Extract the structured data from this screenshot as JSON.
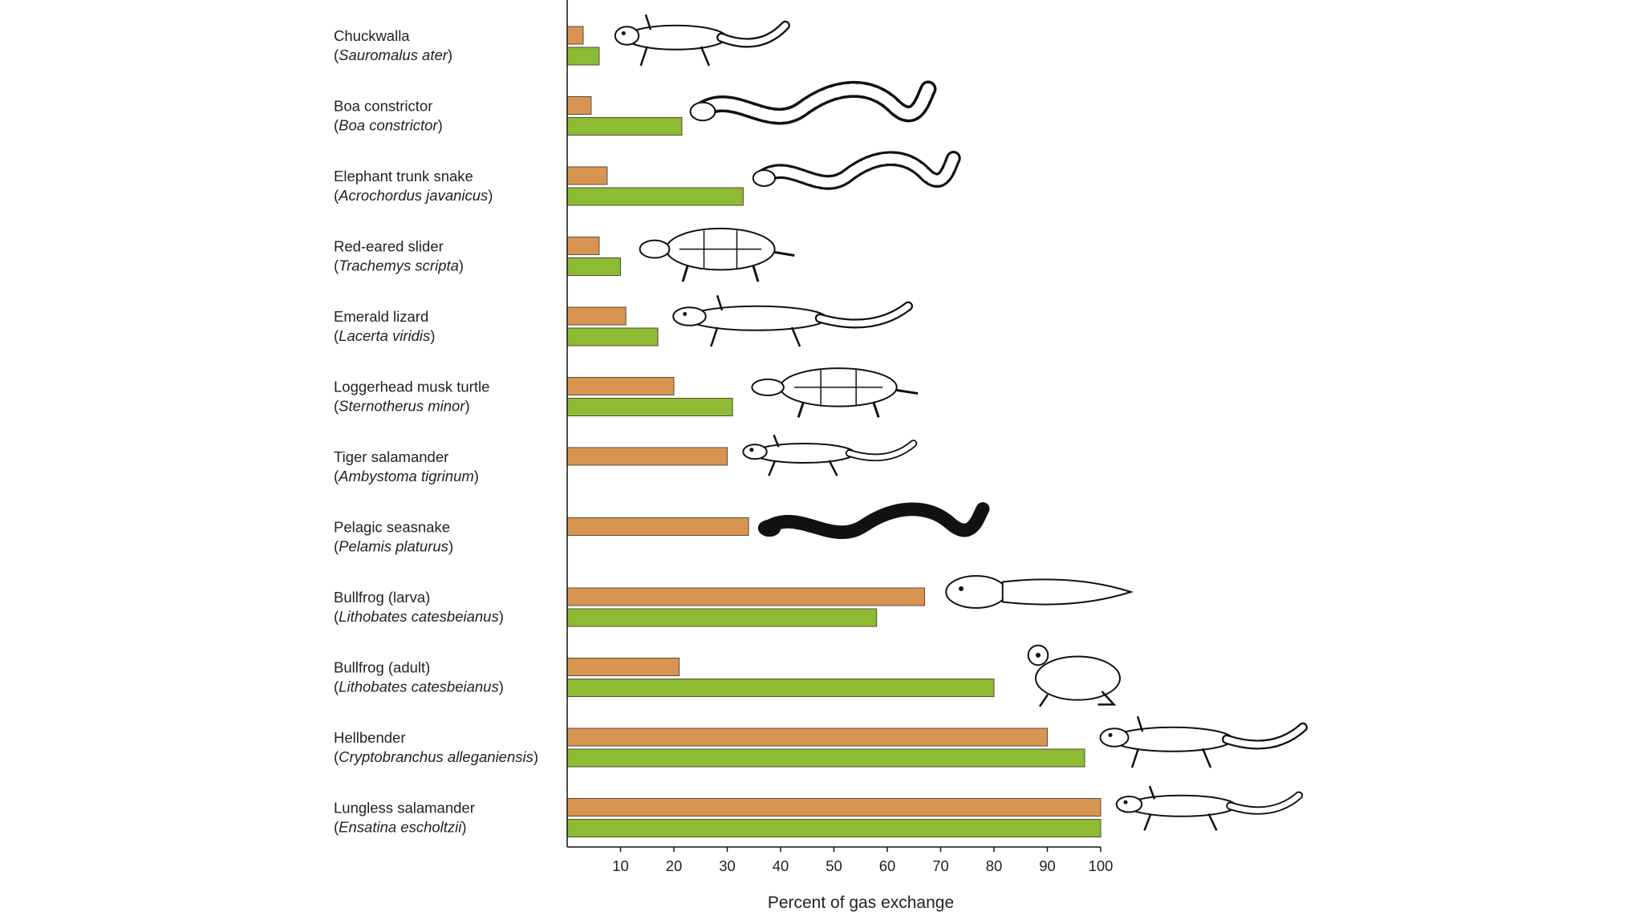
{
  "chart_data": {
    "type": "bar",
    "orientation": "horizontal",
    "xlabel": "Percent of gas exchange",
    "xlim": [
      0,
      100
    ],
    "xticks": [
      10,
      20,
      30,
      40,
      50,
      60,
      70,
      80,
      90,
      100
    ],
    "grid": false,
    "legend": "none",
    "colors": {
      "orange": "#D89552",
      "green": "#8DBB34",
      "outline": "#5a4a3a"
    },
    "categories": [
      {
        "common": "Chuckwalla",
        "scientific": "Sauromalus ater",
        "icon": "lizard-icon"
      },
      {
        "common": "Boa constrictor",
        "scientific": "Boa constrictor",
        "icon": "snake-icon"
      },
      {
        "common": "Elephant trunk snake",
        "scientific": "Acrochordus javanicus",
        "icon": "snake-icon"
      },
      {
        "common": "Red-eared slider",
        "scientific": "Trachemys scripta",
        "icon": "turtle-icon"
      },
      {
        "common": "Emerald lizard",
        "scientific": "Lacerta viridis",
        "icon": "lizard-icon"
      },
      {
        "common": "Loggerhead musk turtle",
        "scientific": "Sternotherus minor",
        "icon": "turtle-icon"
      },
      {
        "common": "Tiger salamander",
        "scientific": "Ambystoma tigrinum",
        "icon": "salamander-icon"
      },
      {
        "common": "Pelagic seasnake",
        "scientific": "Pelamis platurus",
        "icon": "seasnake-icon"
      },
      {
        "common": "Bullfrog (larva)",
        "scientific": "Lithobates catesbeianus",
        "icon": "tadpole-icon"
      },
      {
        "common": "Bullfrog (adult)",
        "scientific": "Lithobates catesbeianus",
        "icon": "frog-icon"
      },
      {
        "common": "Hellbender",
        "scientific": "Cryptobranchus alleganiensis",
        "icon": "salamander-icon"
      },
      {
        "common": "Lungless salamander",
        "scientific": "Ensatina escholtzii",
        "icon": "salamander-icon"
      }
    ],
    "series": [
      {
        "color": "#D89552",
        "values": [
          3,
          4.5,
          7.5,
          6,
          11,
          20,
          30,
          34,
          67,
          21,
          90,
          100
        ]
      },
      {
        "color": "#8DBB34",
        "values": [
          6,
          21.5,
          33,
          10,
          17,
          31,
          null,
          null,
          58,
          80,
          97,
          100
        ]
      }
    ]
  }
}
